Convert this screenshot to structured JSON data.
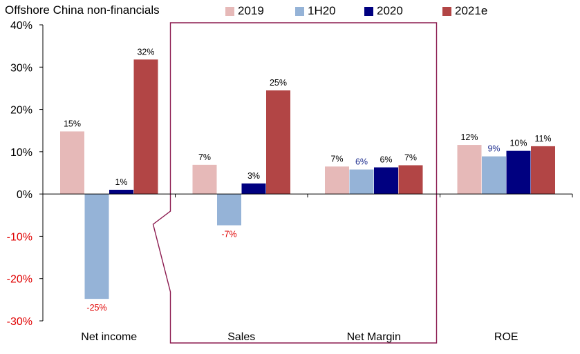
{
  "chart_data": {
    "type": "bar",
    "title": "Offshore China non-financials",
    "categories": [
      "Net income",
      "Sales",
      "Net Margin",
      "ROE"
    ],
    "series": [
      {
        "name": "2019",
        "color": "#e6b9b8",
        "values": [
          14.8,
          6.9,
          6.5,
          11.6
        ],
        "labels": [
          "15%",
          "7%",
          "7%",
          "12%"
        ],
        "label_colors": [
          "#000000",
          "#000000",
          "#000000",
          "#000000"
        ]
      },
      {
        "name": "1H20",
        "color": "#95b3d7",
        "values": [
          -24.8,
          -7.4,
          5.8,
          8.9
        ],
        "labels": [
          "-25%",
          "-7%",
          "6%",
          "9%"
        ],
        "label_colors": [
          "#e00000",
          "#e00000",
          "#1f2f8f",
          "#1f2f8f"
        ]
      },
      {
        "name": "2020",
        "color": "#000080",
        "values": [
          1.0,
          2.5,
          6.3,
          10.2
        ],
        "labels": [
          "1%",
          "3%",
          "6%",
          "10%"
        ],
        "label_colors": [
          "#000000",
          "#000000",
          "#000000",
          "#000000"
        ]
      },
      {
        "name": "2021e",
        "color": "#b24545",
        "values": [
          31.8,
          24.5,
          6.8,
          11.3
        ],
        "labels": [
          "32%",
          "25%",
          "7%",
          "11%"
        ],
        "label_colors": [
          "#000000",
          "#000000",
          "#000000",
          "#000000"
        ]
      }
    ],
    "ylim": [
      -30,
      40
    ],
    "yticks": [
      -30,
      -20,
      -10,
      0,
      10,
      20,
      30,
      40
    ],
    "ytick_labels": [
      "-30%",
      "-20%",
      "-10%",
      "0%",
      "10%",
      "20%",
      "30%",
      "40%"
    ],
    "ytick_colors": [
      "#e00000",
      "#e00000",
      "#e00000",
      "#000000",
      "#000000",
      "#000000",
      "#000000",
      "#000000"
    ],
    "highlight": {
      "categories": [
        "Sales",
        "Net Margin"
      ],
      "color": "#8b1a4f"
    },
    "legend_position": "top",
    "xlabel": "",
    "ylabel": ""
  }
}
